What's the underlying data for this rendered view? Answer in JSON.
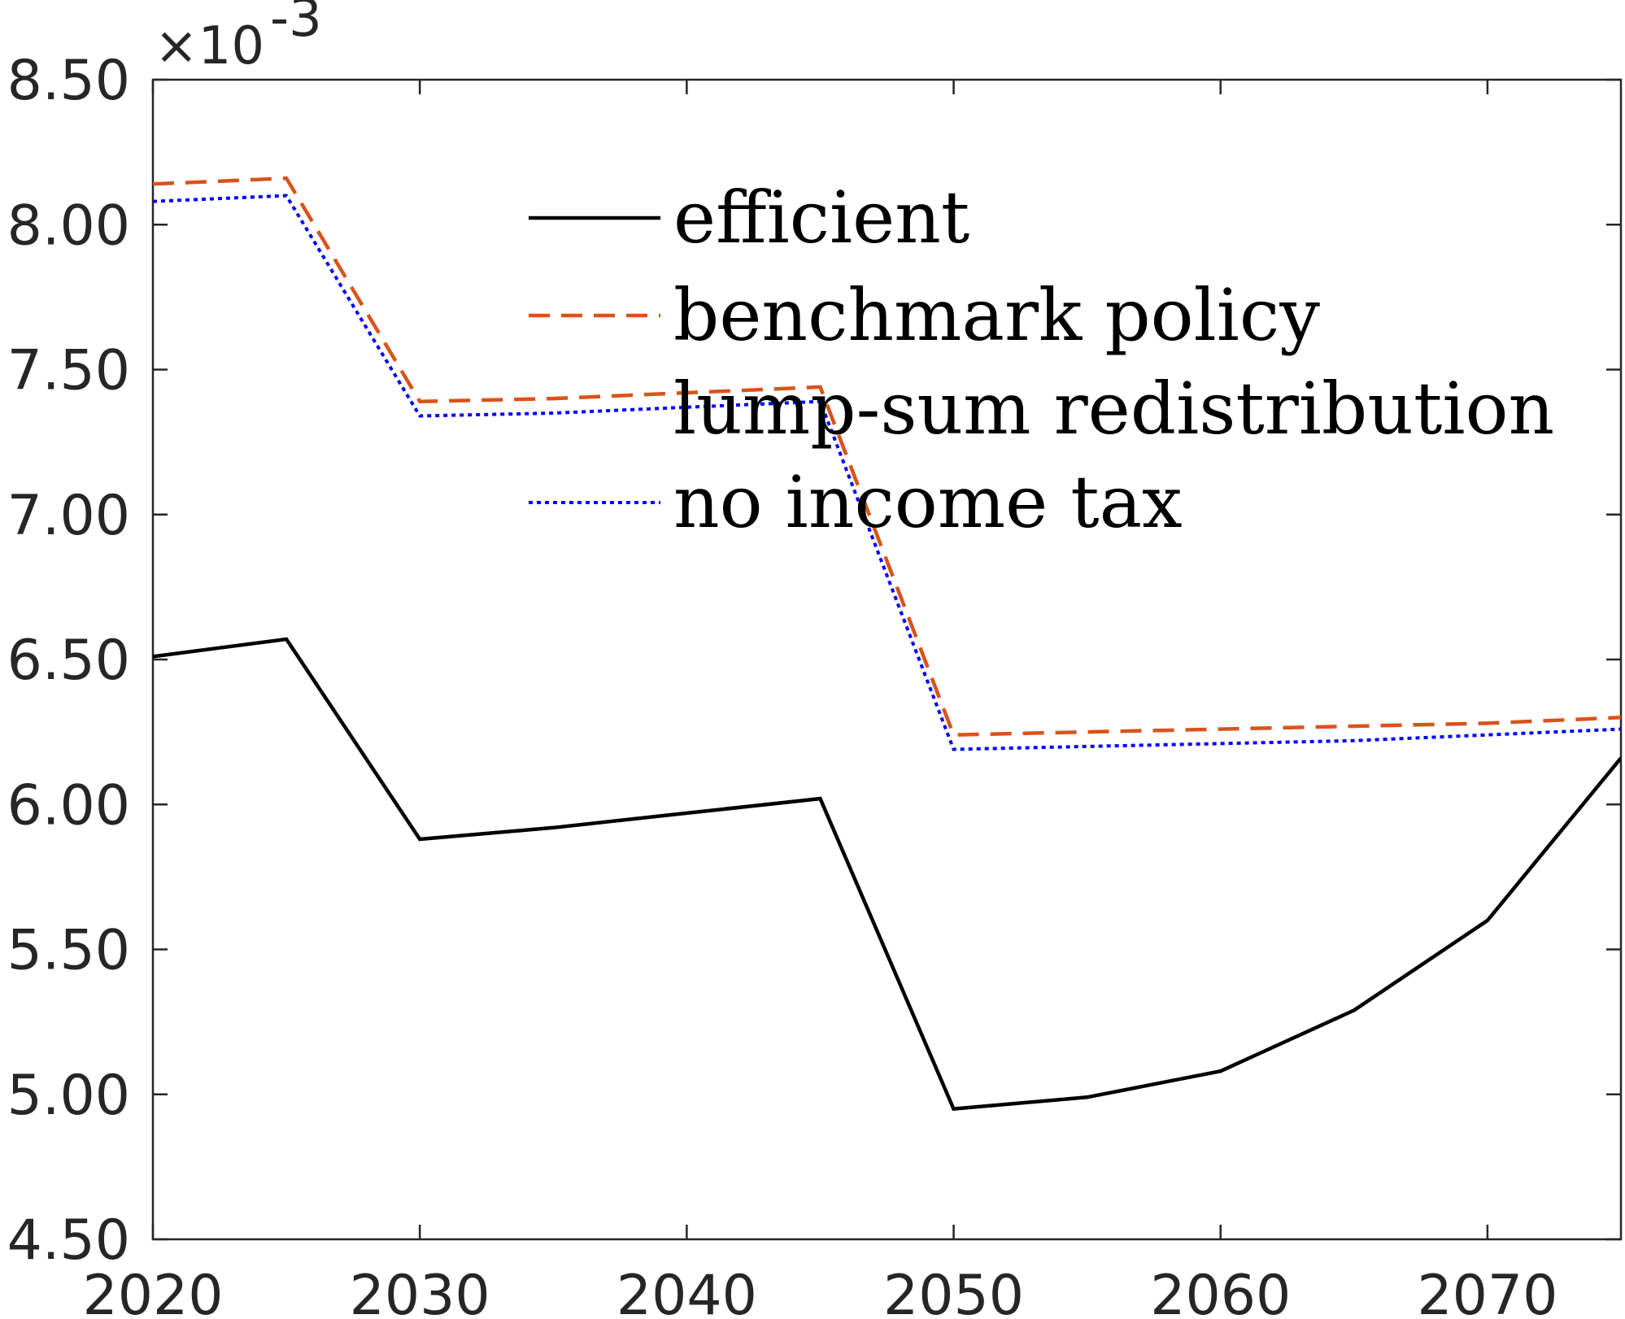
{
  "chart_data": {
    "type": "line",
    "title": "",
    "xlabel": "",
    "ylabel": "",
    "x": [
      2020,
      2025,
      2030,
      2035,
      2040,
      2045,
      2050,
      2055,
      2060,
      2065,
      2070,
      2075
    ],
    "xlim": [
      2020,
      2075
    ],
    "ylim": [
      4.5,
      8.5
    ],
    "y_multiplier": "×10",
    "y_exponent": "-3",
    "xticks": [
      2020,
      2030,
      2040,
      2050,
      2060,
      2070
    ],
    "yticks": [
      4.5,
      5.0,
      5.5,
      6.0,
      6.5,
      7.0,
      7.5,
      8.0,
      8.5
    ],
    "xtick_labels": [
      "2020",
      "2030",
      "2040",
      "2050",
      "2060",
      "2070"
    ],
    "ytick_labels": [
      "4.50",
      "5.00",
      "5.50",
      "6.00",
      "6.50",
      "7.00",
      "7.50",
      "8.00",
      "8.50"
    ],
    "grid": false,
    "legend_position": "top-center",
    "series": [
      {
        "name": "efficient",
        "color": "#000000",
        "style": "solid",
        "values": [
          6.51,
          6.57,
          5.88,
          5.92,
          5.97,
          6.02,
          4.95,
          4.99,
          5.08,
          5.29,
          5.6,
          6.16
        ]
      },
      {
        "name": "benchmark policy",
        "color": "#d95319",
        "style": "dashed",
        "values": [
          8.14,
          8.16,
          7.39,
          7.4,
          7.42,
          7.44,
          6.24,
          6.25,
          6.26,
          6.27,
          6.28,
          6.3
        ]
      },
      {
        "name": "lump-sum redistribution",
        "color": "#edb120",
        "style": "dashdot",
        "values": [
          8.08,
          8.1,
          7.34,
          7.35,
          7.37,
          7.39,
          6.19,
          6.2,
          6.21,
          6.22,
          6.24,
          6.26
        ]
      },
      {
        "name": "no income tax",
        "color": "#0000ff",
        "style": "dotted",
        "values": [
          8.08,
          8.1,
          7.34,
          7.35,
          7.37,
          7.39,
          6.19,
          6.2,
          6.21,
          6.22,
          6.24,
          6.26
        ]
      }
    ]
  }
}
